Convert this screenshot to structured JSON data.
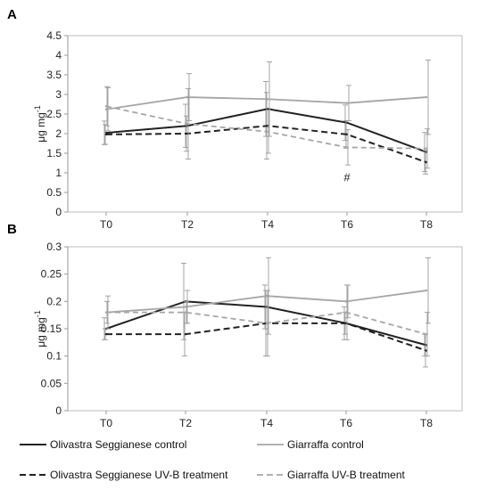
{
  "chart_data": [
    {
      "panel": "A",
      "type": "line",
      "ylabel": "μg mg-1",
      "ylim": [
        0,
        4.5
      ],
      "yticks": [
        0,
        0.5,
        1,
        1.5,
        2,
        2.5,
        3,
        3.5,
        4,
        4.5
      ],
      "yticklabels": [
        "0",
        "0.5",
        "1",
        "1.5",
        "2",
        "2.5",
        "3",
        "3.5",
        "4",
        "4.5"
      ],
      "categories": [
        "T0",
        "T2",
        "T4",
        "T6",
        "T8"
      ],
      "series": [
        {
          "name": "Olivastra Seggianese control",
          "color": "#222222",
          "dash": "solid",
          "values": [
            2.02,
            2.2,
            2.63,
            2.28,
            1.53
          ],
          "err": [
            0.3,
            0.55,
            0.7,
            0.45,
            0.5
          ]
        },
        {
          "name": "Giarraffa control",
          "color": "#a6a6a6",
          "dash": "solid",
          "values": [
            2.62,
            2.93,
            2.88,
            2.78,
            2.93
          ],
          "err": [
            0.55,
            0.6,
            0.95,
            0.45,
            0.95
          ]
        },
        {
          "name": "Olivastra Seggianese UV-B treatment",
          "color": "#222222",
          "dash": "dashed",
          "values": [
            1.98,
            2.0,
            2.2,
            1.98,
            1.27
          ],
          "err": [
            0.25,
            0.45,
            0.85,
            0.35,
            0.3
          ]
        },
        {
          "name": "Giarraffa UV-B treatment",
          "color": "#a6a6a6",
          "dash": "dashed",
          "values": [
            2.7,
            2.25,
            2.05,
            1.65,
            1.62
          ],
          "err": [
            0.5,
            0.9,
            0.55,
            0.45,
            0.5
          ]
        }
      ],
      "annotations": [
        {
          "text": "#",
          "category": "T6",
          "y": 0.9
        }
      ]
    },
    {
      "panel": "B",
      "type": "line",
      "ylabel": "μg mg-1",
      "ylim": [
        0,
        0.3
      ],
      "yticks": [
        0,
        0.05,
        0.1,
        0.15,
        0.2,
        0.25,
        0.3
      ],
      "yticklabels": [
        "0",
        "0.05",
        "0.1",
        "0.15",
        "0.2",
        "0.25",
        "0.3"
      ],
      "categories": [
        "T0",
        "T2",
        "T4",
        "T6",
        "T8"
      ],
      "series": [
        {
          "name": "Olivastra Seggianese control",
          "color": "#222222",
          "dash": "solid",
          "values": [
            0.15,
            0.2,
            0.19,
            0.16,
            0.12
          ],
          "err": [
            0.02,
            0.07,
            0.04,
            0.03,
            0.02
          ]
        },
        {
          "name": "Giarraffa control",
          "color": "#a6a6a6",
          "dash": "solid",
          "values": [
            0.18,
            0.19,
            0.21,
            0.2,
            0.22
          ],
          "err": [
            0.03,
            0.03,
            0.07,
            0.03,
            0.06
          ]
        },
        {
          "name": "Olivastra Seggianese UV-B treatment",
          "color": "#222222",
          "dash": "dashed",
          "values": [
            0.14,
            0.14,
            0.16,
            0.16,
            0.11
          ],
          "err": [
            0.01,
            0.04,
            0.06,
            0.02,
            0.03
          ]
        },
        {
          "name": "Giarraffa UV-B treatment",
          "color": "#a6a6a6",
          "dash": "dashed",
          "values": [
            0.18,
            0.18,
            0.16,
            0.18,
            0.14
          ],
          "err": [
            0.02,
            0.02,
            0.06,
            0.05,
            0.04
          ]
        }
      ],
      "annotations": []
    }
  ],
  "legend": {
    "placement": "bottom",
    "items": [
      "Olivastra Seggianese control",
      "Giarraffa control",
      "Olivastra Seggianese UV-B treatment",
      "Giarraffa UV-B treatment"
    ]
  }
}
